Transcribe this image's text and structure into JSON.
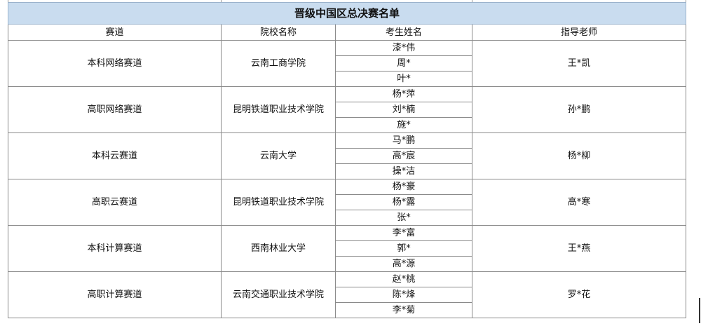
{
  "title": "晋级中国区总决赛名单",
  "headers": [
    "赛道",
    "院校名称",
    "考生姓名",
    "指导老师"
  ],
  "groups": [
    {
      "track": "本科网络赛道",
      "school": "云南工商学院",
      "students": [
        "漆*伟",
        "周*",
        "叶*"
      ],
      "teacher": "王*凯"
    },
    {
      "track": "高职网络赛道",
      "school": "昆明铁道职业技术学院",
      "students": [
        "杨*萍",
        "刘*楠",
        "施*"
      ],
      "teacher": "孙*鹏"
    },
    {
      "track": "本科云赛道",
      "school": "云南大学",
      "students": [
        "马*鹏",
        "高*宸",
        "操*洁"
      ],
      "teacher": "杨*柳"
    },
    {
      "track": "高职云赛道",
      "school": "昆明铁道职业技术学院",
      "students": [
        "杨*豪",
        "杨*露",
        "张*"
      ],
      "teacher": "高*寒"
    },
    {
      "track": "本科计算赛道",
      "school": "西南林业大学",
      "students": [
        "李*富",
        "郭*",
        "高*源"
      ],
      "teacher": "王*燕"
    },
    {
      "track": "高职计算赛道",
      "school": "云南交通职业技术学院",
      "students": [
        "赵*桃",
        "陈*烽",
        "李*菊"
      ],
      "teacher": "罗*花"
    }
  ],
  "colors": {
    "title_bg": "#c9dcef",
    "border": "#8a8a8a"
  }
}
